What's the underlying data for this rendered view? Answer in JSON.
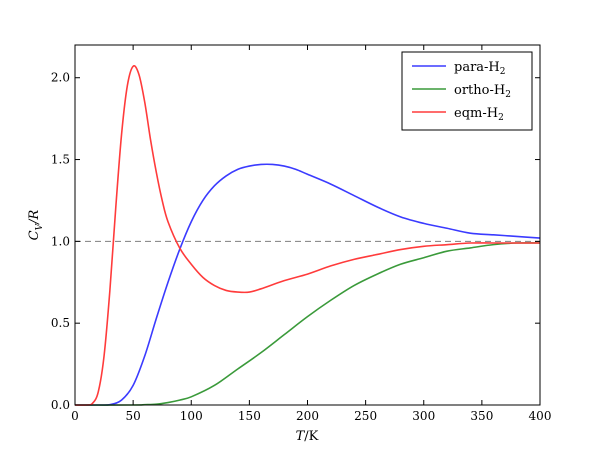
{
  "chart_data": {
    "type": "line",
    "xlabel": "T/K",
    "ylabel": "C_V/R",
    "xlim": [
      0,
      400
    ],
    "ylim": [
      0,
      2.2
    ],
    "x_ticks": [
      0,
      50,
      100,
      150,
      200,
      250,
      300,
      350,
      400
    ],
    "x_tick_labels": [
      "0",
      "50",
      "100",
      "150",
      "200",
      "250",
      "300",
      "350",
      "400"
    ],
    "y_ticks": [
      0,
      0.5,
      1.0,
      1.5,
      2.0
    ],
    "y_tick_labels": [
      "0.0",
      "0.5",
      "1.0",
      "1.5",
      "2.0"
    ],
    "grid": false,
    "legend_position": "top-right",
    "reference_line": {
      "y": 1.0,
      "style": "dashed",
      "color": "#7f7f7f"
    },
    "series": [
      {
        "name": "para-H",
        "name_subscript": "2",
        "color": "#3b3bff",
        "points": [
          [
            0,
            0
          ],
          [
            20,
            0
          ],
          [
            30,
            0.002
          ],
          [
            40,
            0.03
          ],
          [
            50,
            0.12
          ],
          [
            60,
            0.3
          ],
          [
            70,
            0.53
          ],
          [
            80,
            0.75
          ],
          [
            90,
            0.95
          ],
          [
            100,
            1.12
          ],
          [
            110,
            1.25
          ],
          [
            120,
            1.34
          ],
          [
            130,
            1.4
          ],
          [
            140,
            1.44
          ],
          [
            150,
            1.46
          ],
          [
            160,
            1.47
          ],
          [
            170,
            1.47
          ],
          [
            180,
            1.46
          ],
          [
            190,
            1.44
          ],
          [
            200,
            1.41
          ],
          [
            220,
            1.35
          ],
          [
            240,
            1.28
          ],
          [
            260,
            1.21
          ],
          [
            280,
            1.15
          ],
          [
            300,
            1.11
          ],
          [
            320,
            1.08
          ],
          [
            340,
            1.05
          ],
          [
            360,
            1.04
          ],
          [
            380,
            1.03
          ],
          [
            400,
            1.02
          ]
        ]
      },
      {
        "name": "ortho-H",
        "name_subscript": "2",
        "color": "#3a9a3a",
        "points": [
          [
            0,
            0
          ],
          [
            50,
            0
          ],
          [
            60,
            0.002
          ],
          [
            70,
            0.005
          ],
          [
            80,
            0.015
          ],
          [
            90,
            0.03
          ],
          [
            100,
            0.05
          ],
          [
            120,
            0.12
          ],
          [
            140,
            0.22
          ],
          [
            160,
            0.32
          ],
          [
            180,
            0.43
          ],
          [
            200,
            0.54
          ],
          [
            220,
            0.64
          ],
          [
            240,
            0.73
          ],
          [
            260,
            0.8
          ],
          [
            280,
            0.86
          ],
          [
            300,
            0.9
          ],
          [
            320,
            0.94
          ],
          [
            340,
            0.96
          ],
          [
            360,
            0.98
          ],
          [
            380,
            0.99
          ],
          [
            400,
            0.99
          ]
        ]
      },
      {
        "name": "eqm-H",
        "name_subscript": "2",
        "color": "#ff3b3b",
        "points": [
          [
            0,
            0
          ],
          [
            10,
            0
          ],
          [
            15,
            0.01
          ],
          [
            20,
            0.08
          ],
          [
            25,
            0.3
          ],
          [
            30,
            0.7
          ],
          [
            35,
            1.2
          ],
          [
            40,
            1.65
          ],
          [
            45,
            1.95
          ],
          [
            50,
            2.07
          ],
          [
            55,
            2.02
          ],
          [
            60,
            1.85
          ],
          [
            65,
            1.62
          ],
          [
            70,
            1.42
          ],
          [
            75,
            1.25
          ],
          [
            80,
            1.12
          ],
          [
            90,
            0.96
          ],
          [
            100,
            0.86
          ],
          [
            110,
            0.78
          ],
          [
            120,
            0.73
          ],
          [
            130,
            0.7
          ],
          [
            140,
            0.69
          ],
          [
            150,
            0.69
          ],
          [
            160,
            0.71
          ],
          [
            180,
            0.76
          ],
          [
            200,
            0.8
          ],
          [
            220,
            0.85
          ],
          [
            240,
            0.89
          ],
          [
            260,
            0.92
          ],
          [
            280,
            0.95
          ],
          [
            300,
            0.97
          ],
          [
            320,
            0.98
          ],
          [
            340,
            0.99
          ],
          [
            360,
            0.99
          ],
          [
            380,
            0.99
          ],
          [
            400,
            0.99
          ]
        ]
      }
    ]
  }
}
